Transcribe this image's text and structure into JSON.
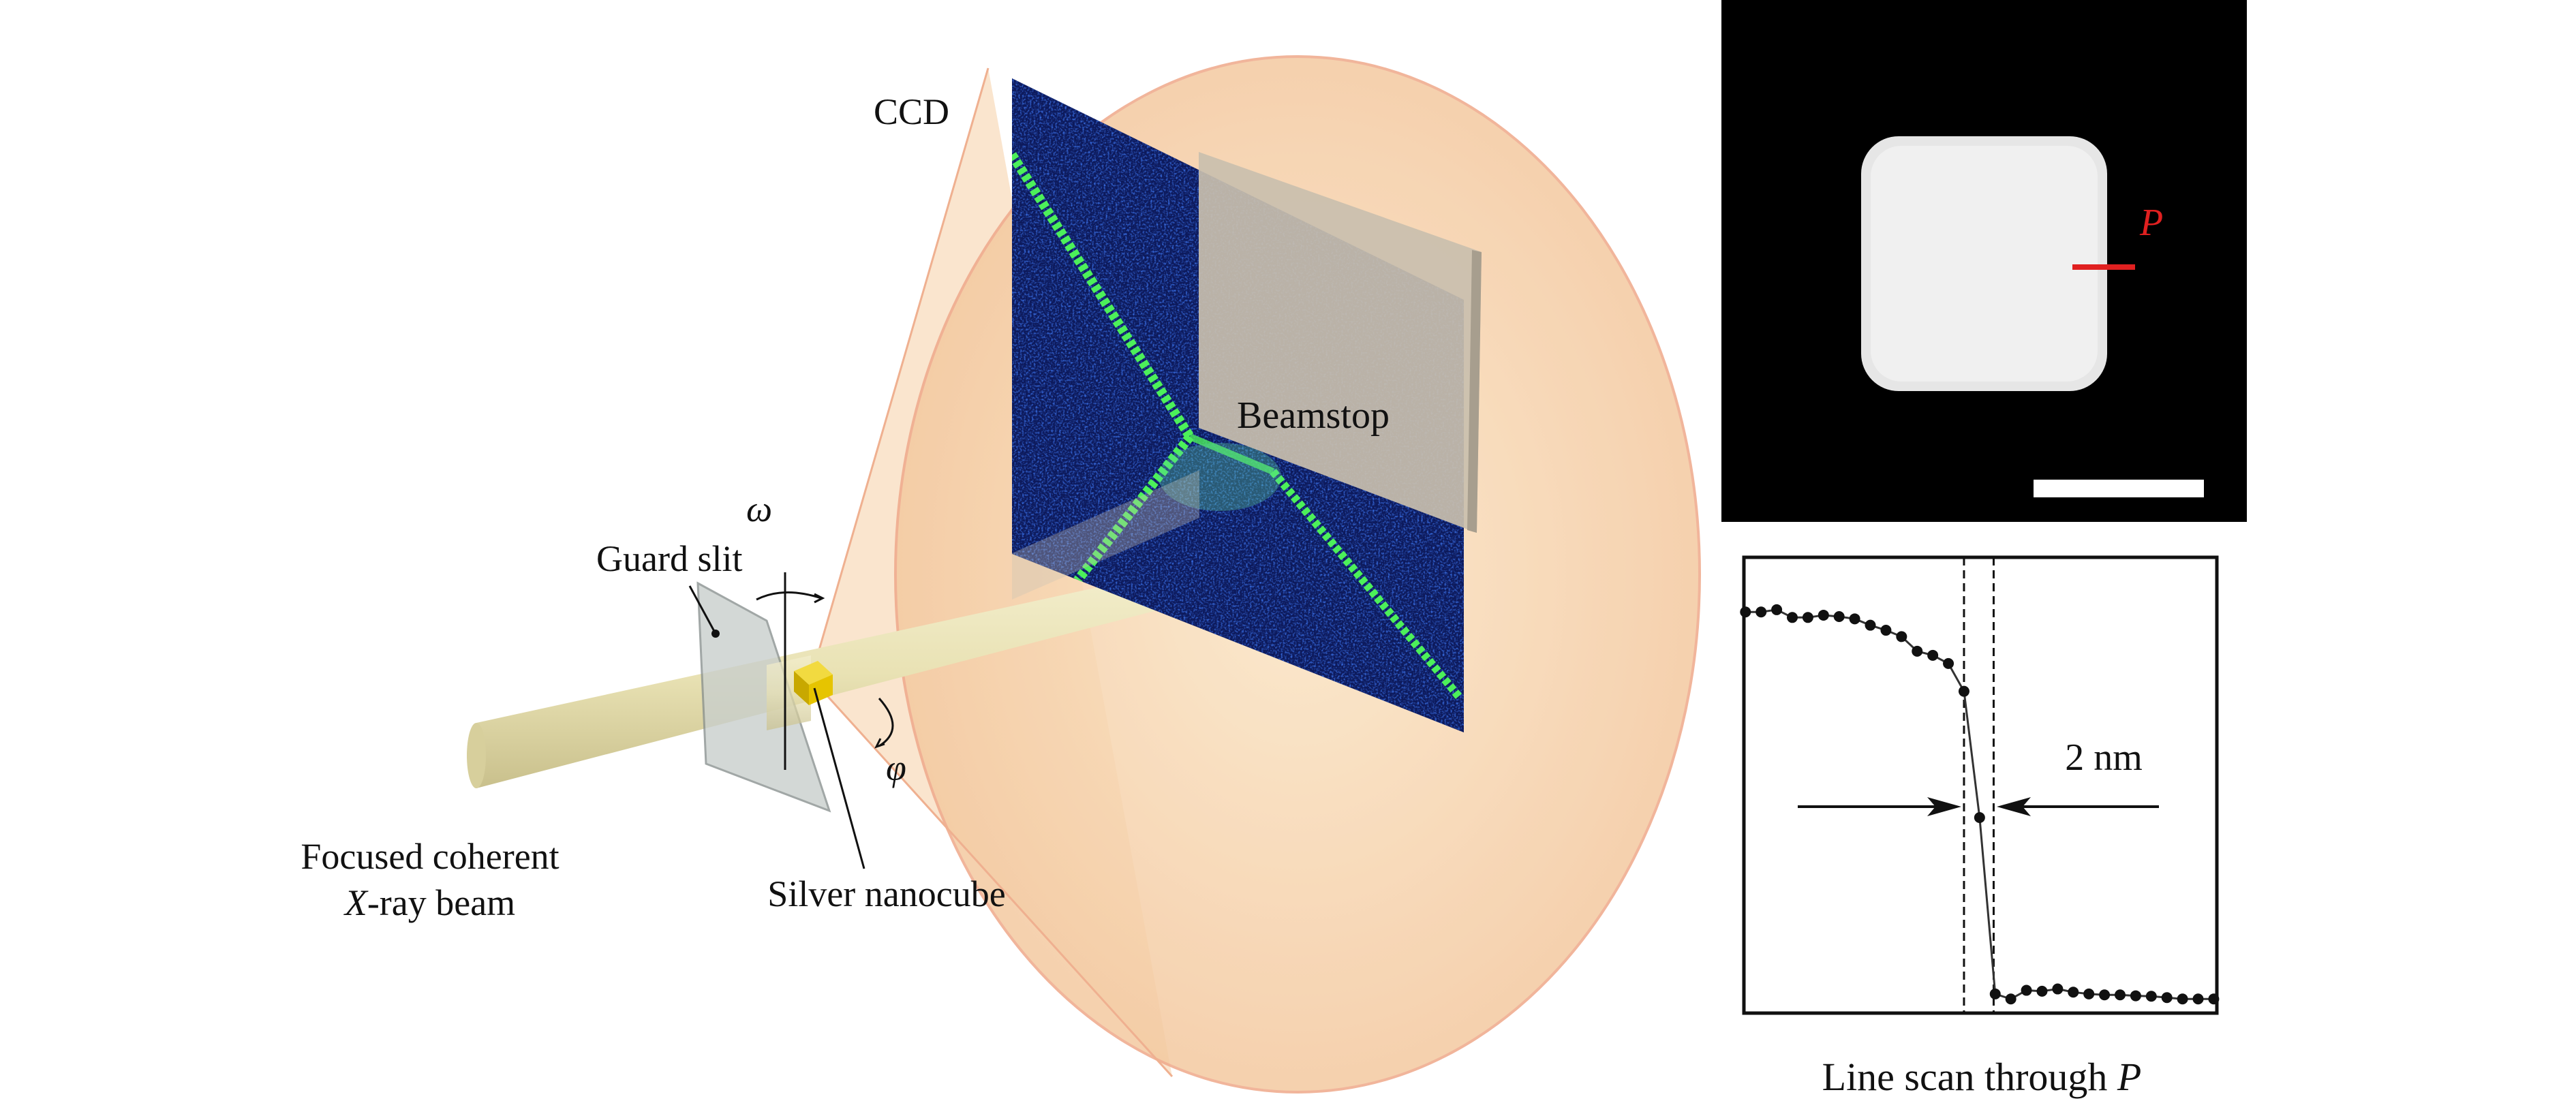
{
  "setup": {
    "ccd_label": "CCD",
    "beamstop_label": "Beamstop",
    "guard_slit_label": "Guard slit",
    "omega_label": "ω",
    "phi_label": "φ",
    "beam_label_line1": "Focused coherent",
    "beam_label_line2_italic": "X",
    "beam_label_line2_rest": "-ray beam",
    "sample_label": "Silver nanocube",
    "colors": {
      "cone": "#f6cfa6",
      "beam": "#e9e2b4",
      "detector": "#0d1a5c",
      "bragg_streak": "#4cf05a",
      "beamstop": "#c9bfae",
      "nanocube": "#e6c400"
    }
  },
  "reconstruction": {
    "marker_label": "P",
    "marker_color": "#e02020",
    "scale_bar": "white, unlabeled"
  },
  "line_scan": {
    "caption_text": "Line scan through ",
    "caption_italic": "P",
    "width_label": "2 nm",
    "chart_data": {
      "type": "line",
      "x_unit": "nm",
      "x": [
        0,
        1,
        2,
        3,
        4,
        5,
        6,
        7,
        8,
        9,
        10,
        11,
        12,
        13,
        14,
        15,
        16,
        17,
        18,
        19,
        20,
        21,
        22,
        23,
        24,
        25,
        26,
        27,
        28,
        29,
        30
      ],
      "values": [
        0.88,
        0.88,
        0.885,
        0.868,
        0.868,
        0.873,
        0.87,
        0.865,
        0.851,
        0.84,
        0.826,
        0.794,
        0.785,
        0.767,
        0.706,
        0.429,
        0.042,
        0.031,
        0.05,
        0.048,
        0.053,
        0.046,
        0.042,
        0.04,
        0.04,
        0.038,
        0.037,
        0.034,
        0.031,
        0.031,
        0.031
      ],
      "xlim": [
        -0.1,
        30.2
      ],
      "ylim": [
        0,
        1
      ],
      "dashed_markers_x": [
        14,
        15.9
      ],
      "axes_ticks": "none",
      "grid": false
    }
  }
}
